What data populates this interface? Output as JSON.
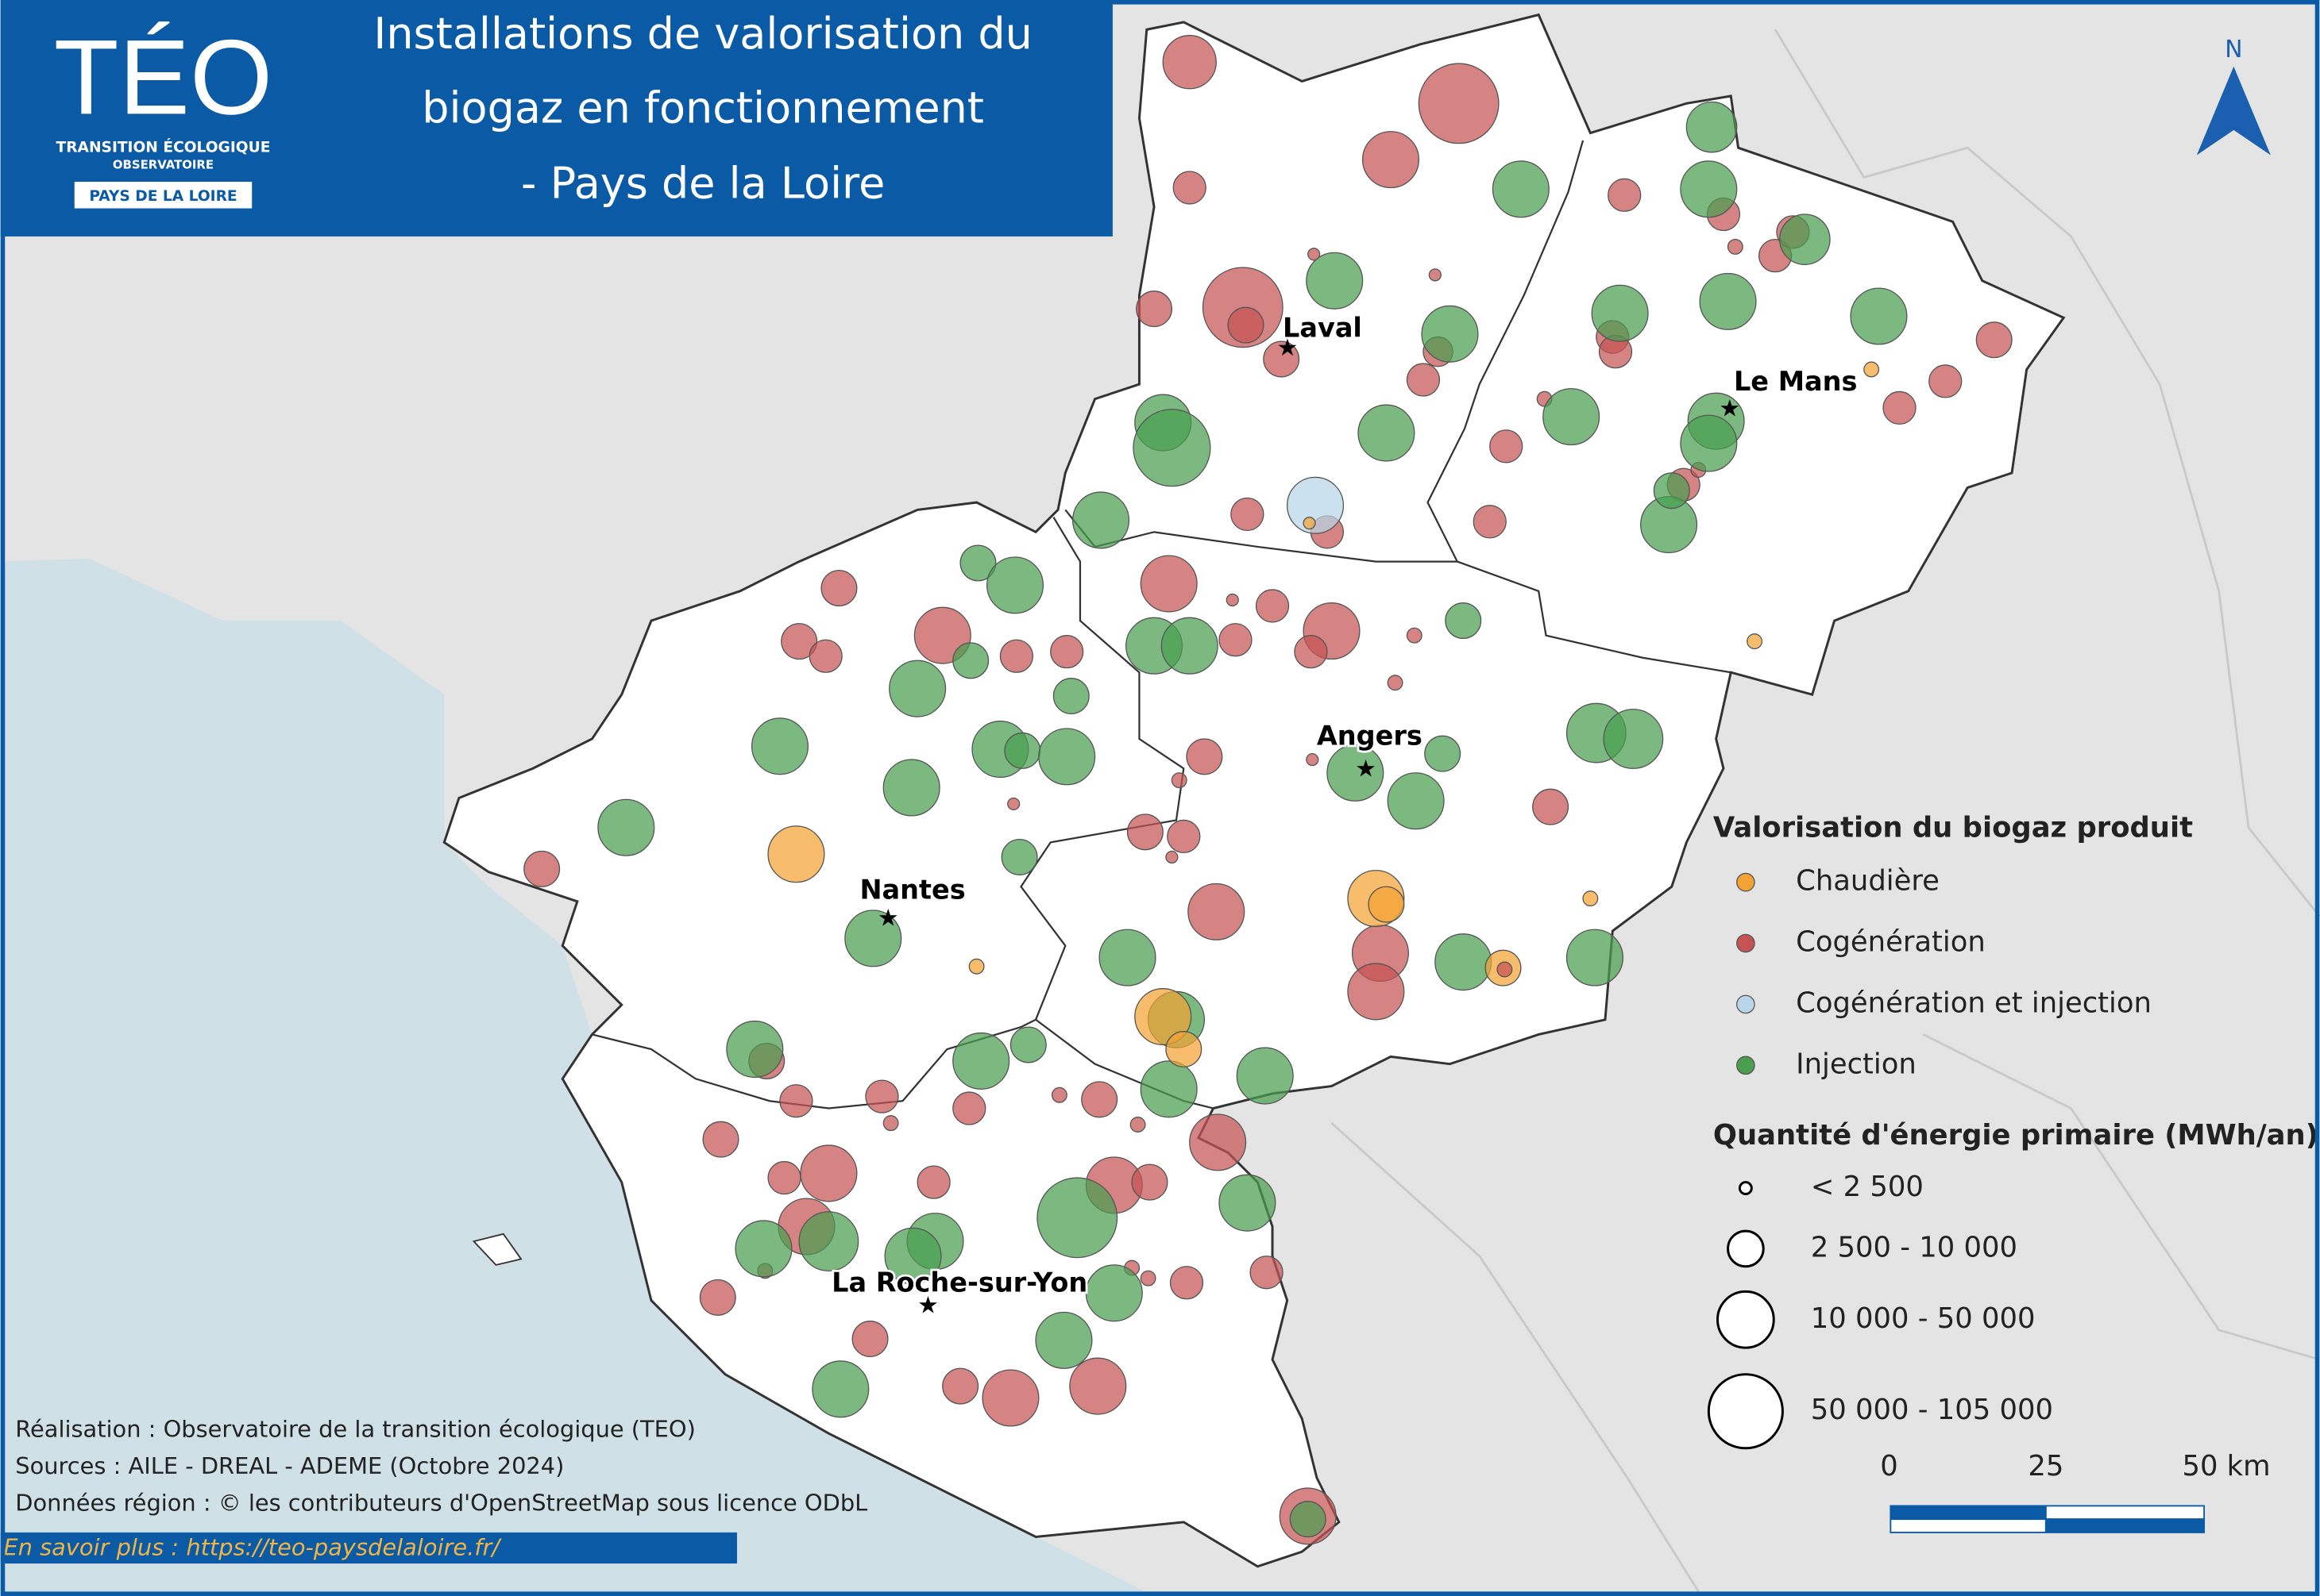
{
  "header": {
    "logo": "TÉO",
    "logo_line1": "TRANSITION ÉCOLOGIQUE",
    "logo_line2": "OBSERVATOIRE",
    "logo_region": "PAYS DE LA LOIRE",
    "title_lines": [
      "Installations de valorisation du",
      "biogaz en fonctionnement",
      "- Pays de la Loire"
    ]
  },
  "north": "N",
  "cities": [
    "Laval",
    "Le Mans",
    "Angers",
    "Nantes",
    "La Roche-sur-Yon"
  ],
  "legend": {
    "title": "Valorisation du biogaz produit",
    "items": [
      {
        "label": "Chaudière",
        "color": "#f4a233"
      },
      {
        "label": "Cogénération",
        "color": "#c65353"
      },
      {
        "label": "Cogénération et injection",
        "color": "#b9d5e8"
      },
      {
        "label": "Injection",
        "color": "#4a9e50"
      }
    ]
  },
  "size_legend": {
    "title": "Quantité d'énergie primaire (MWh/an)",
    "classes": [
      "< 2 500",
      "2 500 - 10 000",
      "10 000 - 50 000",
      "50 000 - 105 000"
    ]
  },
  "scale_bar": {
    "labels": [
      "0",
      "25",
      "50 km"
    ]
  },
  "credits": [
    "Réalisation : Observatoire de la transition écologique (TEO)",
    "Sources : AILE - DREAL - ADEME (Octobre 2024)",
    "Données région : © les contributeurs d'OpenStreetMap sous licence ODbL"
  ],
  "link": "En savoir plus : https://teo-paysdelaloire.fr/"
}
